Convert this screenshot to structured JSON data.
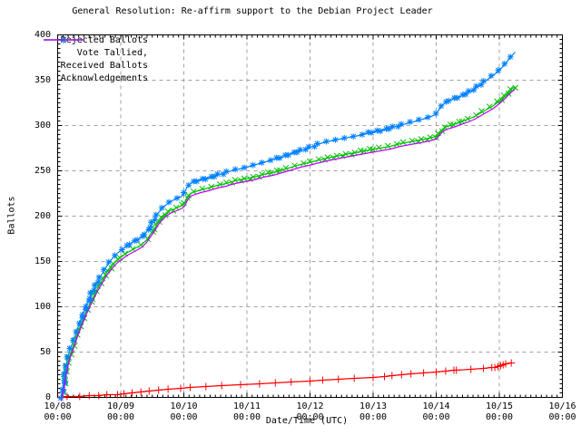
{
  "chart_data": {
    "type": "line",
    "title": "General Resolution: Re-affirm support to the Debian Project Leader",
    "xlabel": "Date/Time (UTC)",
    "ylabel": "Ballots",
    "x_axis": {
      "unit": "days since 10/08 00:00 UTC",
      "range": [
        0,
        8
      ],
      "major_tick_days": 1,
      "minor_ticks_per_day": 12,
      "tick_labels": [
        {
          "date": "10/08",
          "time": "00:00"
        },
        {
          "date": "10/09",
          "time": "00:00"
        },
        {
          "date": "10/10",
          "time": "00:00"
        },
        {
          "date": "10/11",
          "time": "00:00"
        },
        {
          "date": "10/12",
          "time": "00:00"
        },
        {
          "date": "10/13",
          "time": "00:00"
        },
        {
          "date": "10/14",
          "time": "00:00"
        },
        {
          "date": "10/15",
          "time": "00:00"
        },
        {
          "date": "10/16",
          "time": "00:00"
        }
      ]
    },
    "y_axis": {
      "range": [
        0,
        400
      ],
      "major_tick": 50,
      "minor_tick": 5,
      "tick_labels": [
        0,
        50,
        100,
        150,
        200,
        250,
        300,
        350,
        400
      ]
    },
    "grid": {
      "show": true,
      "color": "#a0a0a0",
      "style": "dashed"
    },
    "legend": {
      "position": "top-left-inside"
    },
    "series": [
      {
        "name": "Rejected Ballots",
        "color": "#ff0000",
        "marker": "plus",
        "marker_mode": "points",
        "points": [
          [
            0.06,
            0
          ],
          [
            0.15,
            1
          ],
          [
            0.35,
            1
          ],
          [
            0.5,
            2
          ],
          [
            0.65,
            2
          ],
          [
            0.78,
            3
          ],
          [
            0.95,
            3
          ],
          [
            1.05,
            4
          ],
          [
            1.18,
            5
          ],
          [
            1.32,
            6
          ],
          [
            1.45,
            7
          ],
          [
            1.6,
            8
          ],
          [
            1.75,
            9
          ],
          [
            1.95,
            10
          ],
          [
            2.1,
            11
          ],
          [
            2.35,
            12
          ],
          [
            2.6,
            13
          ],
          [
            2.9,
            14
          ],
          [
            3.2,
            15
          ],
          [
            3.45,
            16
          ],
          [
            3.7,
            17
          ],
          [
            4.0,
            18
          ],
          [
            4.2,
            19
          ],
          [
            4.45,
            20
          ],
          [
            4.7,
            21
          ],
          [
            5.0,
            22
          ],
          [
            5.18,
            23
          ],
          [
            5.3,
            24
          ],
          [
            5.45,
            25
          ],
          [
            5.6,
            26
          ],
          [
            5.8,
            27
          ],
          [
            6.0,
            28
          ],
          [
            6.15,
            29
          ],
          [
            6.28,
            30
          ],
          [
            6.32,
            30
          ],
          [
            6.55,
            31
          ],
          [
            6.75,
            32
          ],
          [
            6.88,
            33
          ],
          [
            6.93,
            33
          ],
          [
            6.98,
            34
          ],
          [
            7.02,
            35
          ],
          [
            7.06,
            36
          ],
          [
            7.1,
            37
          ],
          [
            7.19,
            38
          ]
        ]
      },
      {
        "name": "Vote Tallied,",
        "color": "#00c000",
        "marker": "cross",
        "marker_mode": "dense",
        "points": [
          [
            0.06,
            0
          ],
          [
            0.08,
            5
          ],
          [
            0.1,
            12
          ],
          [
            0.12,
            21
          ],
          [
            0.14,
            29
          ],
          [
            0.16,
            36
          ],
          [
            0.18,
            43
          ],
          [
            0.21,
            49
          ],
          [
            0.24,
            55
          ],
          [
            0.27,
            61
          ],
          [
            0.3,
            67
          ],
          [
            0.33,
            73
          ],
          [
            0.37,
            80
          ],
          [
            0.41,
            87
          ],
          [
            0.45,
            94
          ],
          [
            0.49,
            100
          ],
          [
            0.53,
            106
          ],
          [
            0.58,
            113
          ],
          [
            0.63,
            120
          ],
          [
            0.68,
            126
          ],
          [
            0.73,
            132
          ],
          [
            0.79,
            139
          ],
          [
            0.85,
            144
          ],
          [
            0.91,
            149
          ],
          [
            0.97,
            153
          ],
          [
            1.03,
            156
          ],
          [
            1.11,
            160
          ],
          [
            1.19,
            163
          ],
          [
            1.27,
            166
          ],
          [
            1.34,
            169
          ],
          [
            1.41,
            174
          ],
          [
            1.48,
            181
          ],
          [
            1.54,
            187
          ],
          [
            1.6,
            194
          ],
          [
            1.66,
            199
          ],
          [
            1.72,
            203
          ],
          [
            1.78,
            206
          ],
          [
            1.85,
            208
          ],
          [
            1.92,
            210
          ],
          [
            1.98,
            212
          ],
          [
            2.02,
            215
          ],
          [
            2.06,
            221
          ],
          [
            2.11,
            225
          ],
          [
            2.18,
            227
          ],
          [
            2.27,
            229
          ],
          [
            2.39,
            231
          ],
          [
            2.53,
            234
          ],
          [
            2.67,
            236
          ],
          [
            2.81,
            239
          ],
          [
            2.96,
            241
          ],
          [
            3.11,
            243
          ],
          [
            3.26,
            246
          ],
          [
            3.41,
            248
          ],
          [
            3.56,
            251
          ],
          [
            3.71,
            254
          ],
          [
            3.85,
            257
          ],
          [
            3.98,
            259
          ],
          [
            4.09,
            261
          ],
          [
            4.21,
            263
          ],
          [
            4.34,
            265
          ],
          [
            4.48,
            267
          ],
          [
            4.63,
            269
          ],
          [
            4.79,
            271
          ],
          [
            4.95,
            273
          ],
          [
            5.11,
            275
          ],
          [
            5.27,
            277
          ],
          [
            5.43,
            280
          ],
          [
            5.59,
            282
          ],
          [
            5.75,
            284
          ],
          [
            5.89,
            286
          ],
          [
            6.0,
            288
          ],
          [
            6.05,
            292
          ],
          [
            6.1,
            296
          ],
          [
            6.17,
            299
          ],
          [
            6.27,
            301
          ],
          [
            6.39,
            304
          ],
          [
            6.51,
            307
          ],
          [
            6.61,
            310
          ],
          [
            6.71,
            314
          ],
          [
            6.81,
            318
          ],
          [
            6.91,
            322
          ],
          [
            7.0,
            327
          ],
          [
            7.08,
            332
          ],
          [
            7.15,
            337
          ],
          [
            7.21,
            341
          ],
          [
            7.25,
            343
          ]
        ]
      },
      {
        "name": "Received Ballots",
        "color": "#0080ff",
        "marker": "star",
        "marker_mode": "dense",
        "points": [
          [
            0.05,
            0
          ],
          [
            0.07,
            6
          ],
          [
            0.09,
            14
          ],
          [
            0.11,
            24
          ],
          [
            0.13,
            32
          ],
          [
            0.15,
            40
          ],
          [
            0.17,
            47
          ],
          [
            0.2,
            53
          ],
          [
            0.23,
            59
          ],
          [
            0.26,
            65
          ],
          [
            0.29,
            71
          ],
          [
            0.32,
            77
          ],
          [
            0.36,
            84
          ],
          [
            0.4,
            92
          ],
          [
            0.44,
            99
          ],
          [
            0.48,
            106
          ],
          [
            0.52,
            112
          ],
          [
            0.57,
            119
          ],
          [
            0.62,
            126
          ],
          [
            0.67,
            132
          ],
          [
            0.72,
            138
          ],
          [
            0.78,
            145
          ],
          [
            0.84,
            151
          ],
          [
            0.9,
            156
          ],
          [
            0.96,
            160
          ],
          [
            1.02,
            163
          ],
          [
            1.1,
            167
          ],
          [
            1.18,
            171
          ],
          [
            1.26,
            174
          ],
          [
            1.33,
            177
          ],
          [
            1.4,
            182
          ],
          [
            1.47,
            189
          ],
          [
            1.53,
            196
          ],
          [
            1.59,
            203
          ],
          [
            1.65,
            208
          ],
          [
            1.71,
            212
          ],
          [
            1.77,
            215
          ],
          [
            1.84,
            218
          ],
          [
            1.91,
            220
          ],
          [
            1.97,
            222
          ],
          [
            2.01,
            226
          ],
          [
            2.05,
            232
          ],
          [
            2.1,
            236
          ],
          [
            2.17,
            238
          ],
          [
            2.26,
            240
          ],
          [
            2.38,
            242
          ],
          [
            2.52,
            245
          ],
          [
            2.66,
            248
          ],
          [
            2.8,
            251
          ],
          [
            2.95,
            253
          ],
          [
            3.1,
            256
          ],
          [
            3.25,
            259
          ],
          [
            3.4,
            262
          ],
          [
            3.55,
            265
          ],
          [
            3.7,
            269
          ],
          [
            3.84,
            272
          ],
          [
            3.97,
            275
          ],
          [
            4.08,
            278
          ],
          [
            4.2,
            281
          ],
          [
            4.33,
            283
          ],
          [
            4.47,
            285
          ],
          [
            4.62,
            287
          ],
          [
            4.78,
            289
          ],
          [
            4.94,
            292
          ],
          [
            5.1,
            294
          ],
          [
            5.26,
            297
          ],
          [
            5.42,
            300
          ],
          [
            5.58,
            303
          ],
          [
            5.74,
            306
          ],
          [
            5.88,
            309
          ],
          [
            5.99,
            312
          ],
          [
            6.04,
            317
          ],
          [
            6.09,
            322
          ],
          [
            6.16,
            326
          ],
          [
            6.26,
            329
          ],
          [
            6.38,
            332
          ],
          [
            6.5,
            336
          ],
          [
            6.6,
            340
          ],
          [
            6.7,
            345
          ],
          [
            6.8,
            350
          ],
          [
            6.9,
            355
          ],
          [
            6.99,
            360
          ],
          [
            7.07,
            366
          ],
          [
            7.14,
            372
          ],
          [
            7.2,
            377
          ],
          [
            7.25,
            381
          ]
        ]
      },
      {
        "name": "Acknowledgements",
        "color": "#c000ff",
        "marker": "none",
        "marker_mode": "none",
        "points": [
          [
            0.06,
            0
          ],
          [
            0.08,
            3
          ],
          [
            0.1,
            9
          ],
          [
            0.12,
            18
          ],
          [
            0.14,
            26
          ],
          [
            0.16,
            33
          ],
          [
            0.18,
            40
          ],
          [
            0.21,
            46
          ],
          [
            0.24,
            52
          ],
          [
            0.27,
            58
          ],
          [
            0.3,
            64
          ],
          [
            0.33,
            70
          ],
          [
            0.37,
            77
          ],
          [
            0.41,
            84
          ],
          [
            0.45,
            91
          ],
          [
            0.49,
            97
          ],
          [
            0.53,
            103
          ],
          [
            0.58,
            110
          ],
          [
            0.63,
            117
          ],
          [
            0.68,
            123
          ],
          [
            0.73,
            129
          ],
          [
            0.79,
            136
          ],
          [
            0.85,
            141
          ],
          [
            0.91,
            146
          ],
          [
            0.97,
            150
          ],
          [
            1.03,
            153
          ],
          [
            1.11,
            157
          ],
          [
            1.19,
            160
          ],
          [
            1.27,
            163
          ],
          [
            1.34,
            166
          ],
          [
            1.41,
            171
          ],
          [
            1.48,
            178
          ],
          [
            1.54,
            184
          ],
          [
            1.6,
            191
          ],
          [
            1.66,
            196
          ],
          [
            1.72,
            200
          ],
          [
            1.78,
            203
          ],
          [
            1.85,
            205
          ],
          [
            1.92,
            207
          ],
          [
            1.98,
            209
          ],
          [
            2.02,
            212
          ],
          [
            2.06,
            218
          ],
          [
            2.11,
            222
          ],
          [
            2.18,
            224
          ],
          [
            2.27,
            226
          ],
          [
            2.39,
            228
          ],
          [
            2.53,
            231
          ],
          [
            2.67,
            233
          ],
          [
            2.81,
            236
          ],
          [
            2.96,
            238
          ],
          [
            3.11,
            240
          ],
          [
            3.26,
            243
          ],
          [
            3.41,
            245
          ],
          [
            3.56,
            248
          ],
          [
            3.71,
            251
          ],
          [
            3.85,
            254
          ],
          [
            3.98,
            256
          ],
          [
            4.09,
            258
          ],
          [
            4.21,
            260
          ],
          [
            4.34,
            262
          ],
          [
            4.48,
            264
          ],
          [
            4.63,
            266
          ],
          [
            4.79,
            268
          ],
          [
            4.95,
            270
          ],
          [
            5.11,
            272
          ],
          [
            5.27,
            274
          ],
          [
            5.43,
            277
          ],
          [
            5.59,
            279
          ],
          [
            5.75,
            281
          ],
          [
            5.89,
            283
          ],
          [
            6.0,
            285
          ],
          [
            6.05,
            289
          ],
          [
            6.1,
            293
          ],
          [
            6.17,
            296
          ],
          [
            6.27,
            298
          ],
          [
            6.39,
            301
          ],
          [
            6.51,
            304
          ],
          [
            6.61,
            307
          ],
          [
            6.71,
            311
          ],
          [
            6.81,
            315
          ],
          [
            6.91,
            319
          ],
          [
            7.0,
            324
          ],
          [
            7.08,
            329
          ],
          [
            7.15,
            334
          ],
          [
            7.21,
            338
          ],
          [
            7.25,
            340
          ]
        ]
      }
    ]
  }
}
